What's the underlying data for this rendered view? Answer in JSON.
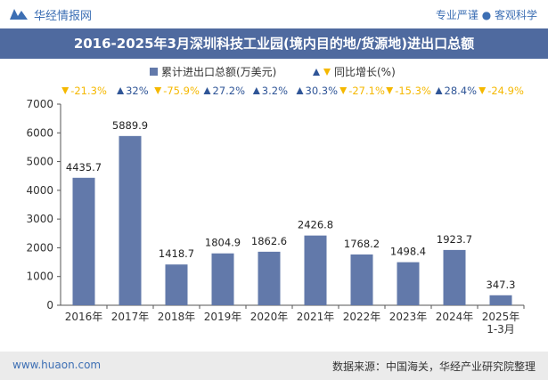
{
  "header": {
    "brand": "华经情报网",
    "slogan": "专业严谨 ● 客观科学"
  },
  "title": "2016-2025年3月深圳科技工业园(境内目的地/货源地)进出口总额",
  "legend": {
    "bar_label": "累计进出口总额(万美元)",
    "growth_label": "同比增长(%)"
  },
  "footer": {
    "site": "www.huaon.com",
    "source": "数据来源：中国海关，华经产业研究院整理"
  },
  "colors": {
    "bar": "#6279aa",
    "title_bg": "#4f6a9f",
    "up": "#2f5597",
    "down": "#f5b800"
  },
  "chart_data": {
    "type": "bar",
    "categories": [
      "2016年",
      "2017年",
      "2018年",
      "2019年",
      "2020年",
      "2021年",
      "2022年",
      "2023年",
      "2024年",
      "2025年\n1-3月"
    ],
    "series": [
      {
        "name": "累计进出口总额(万美元)",
        "values": [
          4435.7,
          5889.9,
          1418.7,
          1804.9,
          1862.6,
          2426.8,
          1768.2,
          1498.4,
          1923.7,
          347.3
        ],
        "value_labels": [
          "4435.7",
          "5889.9",
          "1418.7",
          "1804.9",
          "1862.6",
          "2426.8",
          "1768.2",
          "1498.4",
          "1923.7",
          "347.3"
        ]
      },
      {
        "name": "同比增长(%)",
        "values": [
          -21.3,
          32,
          -75.9,
          27.2,
          3.2,
          30.3,
          -27.1,
          -15.3,
          28.4,
          -24.9
        ],
        "value_labels": [
          "-21.3%",
          "32%",
          "-75.9%",
          "27.2%",
          "3.2%",
          "30.3%",
          "-27.1%",
          "-15.3%",
          "28.4%",
          "-24.9%"
        ]
      }
    ],
    "yticks": [
      0,
      1000,
      2000,
      3000,
      4000,
      5000,
      6000,
      7000
    ],
    "ylim": [
      0,
      7000
    ],
    "legend_position": "top-center",
    "grid": false
  }
}
